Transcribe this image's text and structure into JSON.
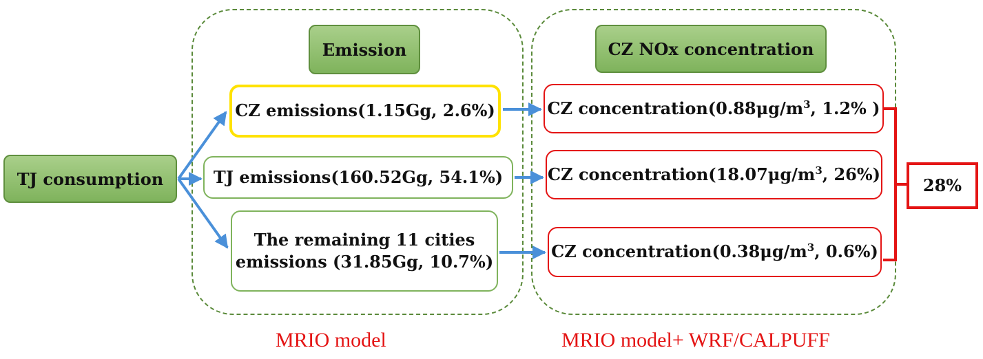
{
  "groups": {
    "left": {
      "header": "Emission",
      "caption": "MRIO model"
    },
    "right": {
      "header": "CZ NOx concentration",
      "caption": "MRIO model+ WRF/CALPUFF"
    }
  },
  "source": {
    "label": "TJ consumption"
  },
  "emissions": [
    {
      "label": "CZ emissions(1.15Gg, 2.6%)"
    },
    {
      "label": "TJ emissions(160.52Gg, 54.1%)"
    },
    {
      "label_line1": "The remaining 11 cities",
      "label_line2": "emissions (31.85Gg, 10.7%)"
    }
  ],
  "concentrations": [
    {
      "prefix": "CZ concentration(0.88μg/m",
      "sup": "3",
      "suffix": ", 1.2% )"
    },
    {
      "prefix": "CZ concentration(18.07μg/m",
      "sup": "3",
      "suffix": ", 26%)"
    },
    {
      "prefix": "CZ concentration(0.38μg/m",
      "sup": "3",
      "suffix": ", 0.6%)"
    }
  ],
  "total": {
    "label": "28%"
  },
  "colors": {
    "group_border": "#5a8a3a",
    "header_fill": "#8dc06a",
    "green_border": "#7fb35c",
    "yellow_border": "#ffe200",
    "red": "#e41414",
    "arrow": "#4a90d9"
  }
}
